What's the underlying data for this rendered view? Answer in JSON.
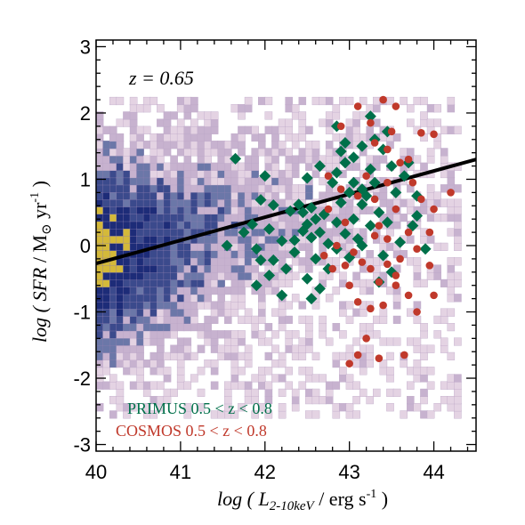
{
  "chart_data": {
    "type": "scatter",
    "annotation": "z = 0.65",
    "xlabel_parts": {
      "prefix": "log ( ",
      "var": "L",
      "sub": "2-10keV",
      "suffix": " / erg s",
      "sup": "-1",
      "close": " )"
    },
    "ylabel_parts": {
      "prefix": "log ( ",
      "var": "SFR",
      "mid": " / M",
      "sun": "⊙",
      "yr": " yr",
      "sup": "-1",
      "close": " )"
    },
    "xlim": [
      40,
      44.5
    ],
    "ylim": [
      -3.1,
      3.1
    ],
    "xticks": [
      "40",
      "41",
      "42",
      "43",
      "44"
    ],
    "yticks": [
      "-3",
      "-2",
      "-1",
      "0",
      "1",
      "2",
      "3"
    ],
    "grid": false,
    "legend_position": "bottom-left",
    "fit_line": {
      "x": [
        40.0,
        44.5
      ],
      "y": [
        -0.27,
        1.3
      ],
      "color": "#000000"
    },
    "density_field": {
      "description_colors": [
        "#e4d3e3",
        "#c7b2cf",
        "#6b77a8",
        "#3b4a8c",
        "#1d2c78",
        "#d4b93a"
      ],
      "extent_x": [
        40.0,
        44.3
      ],
      "extent_y": [
        -2.6,
        2.2
      ]
    },
    "series": [
      {
        "name": "PRIMUS 0.5 < z < 0.8",
        "color": "#00704a",
        "marker": "diamond",
        "points": [
          [
            41.65,
            1.31
          ],
          [
            42.0,
            1.05
          ],
          [
            41.95,
            0.69
          ],
          [
            42.1,
            0.61
          ],
          [
            42.3,
            0.52
          ],
          [
            41.75,
            0.2
          ],
          [
            41.55,
            0.0
          ],
          [
            41.9,
            -0.05
          ],
          [
            41.95,
            -0.22
          ],
          [
            42.1,
            -0.22
          ],
          [
            42.35,
            -0.1
          ],
          [
            42.2,
            0.07
          ],
          [
            42.05,
            0.25
          ],
          [
            41.85,
            0.32
          ],
          [
            42.25,
            -0.35
          ],
          [
            42.05,
            -0.45
          ],
          [
            41.9,
            -0.6
          ],
          [
            42.2,
            -0.75
          ],
          [
            42.45,
            0.5
          ],
          [
            42.55,
            0.57
          ],
          [
            42.6,
            0.4
          ],
          [
            42.7,
            0.47
          ],
          [
            42.5,
            0.32
          ],
          [
            42.65,
            0.2
          ],
          [
            42.55,
            0.12
          ],
          [
            42.75,
            0.03
          ],
          [
            42.45,
            0.22
          ],
          [
            42.35,
            0.08
          ],
          [
            42.6,
            -0.2
          ],
          [
            42.75,
            -0.35
          ],
          [
            42.5,
            -0.5
          ],
          [
            42.65,
            -0.65
          ],
          [
            42.55,
            -0.8
          ],
          [
            42.4,
            0.62
          ],
          [
            42.65,
            1.2
          ],
          [
            42.5,
            1.02
          ],
          [
            42.8,
            0.95
          ],
          [
            42.85,
            1.1
          ],
          [
            42.95,
            1.25
          ],
          [
            42.9,
            1.42
          ],
          [
            42.95,
            1.55
          ],
          [
            43.05,
            1.33
          ],
          [
            42.85,
            1.8
          ],
          [
            43.0,
            0.8
          ],
          [
            42.9,
            0.65
          ],
          [
            43.15,
            0.62
          ],
          [
            43.05,
            0.4
          ],
          [
            42.85,
            0.35
          ],
          [
            42.95,
            0.18
          ],
          [
            43.1,
            0.1
          ],
          [
            42.85,
            -0.05
          ],
          [
            43.0,
            -0.18
          ],
          [
            43.15,
            0.0
          ],
          [
            43.25,
            0.3
          ],
          [
            43.35,
            0.5
          ],
          [
            43.2,
            0.75
          ],
          [
            43.3,
            0.95
          ],
          [
            43.25,
            1.15
          ],
          [
            43.15,
            1.5
          ],
          [
            43.3,
            1.6
          ],
          [
            43.25,
            1.95
          ],
          [
            43.45,
            1.72
          ],
          [
            43.4,
            1.45
          ],
          [
            43.5,
            1.2
          ],
          [
            43.55,
            0.8
          ],
          [
            43.45,
            0.35
          ],
          [
            43.6,
            0.05
          ],
          [
            43.4,
            -0.15
          ],
          [
            43.5,
            -0.4
          ],
          [
            43.35,
            -0.55
          ],
          [
            43.65,
            1.05
          ],
          [
            43.7,
            1.25
          ],
          [
            43.8,
            0.45
          ],
          [
            43.75,
            0.3
          ],
          [
            43.9,
            -0.05
          ],
          [
            43.8,
            0.75
          ],
          [
            43.05,
            0.95
          ],
          [
            43.15,
            0.85
          ]
        ]
      },
      {
        "name": "COSMOS 0.5 < z < 0.8",
        "color": "#c0392b",
        "marker": "circle",
        "points": [
          [
            42.9,
            1.8
          ],
          [
            43.1,
            2.1
          ],
          [
            43.25,
            1.85
          ],
          [
            43.4,
            2.2
          ],
          [
            43.55,
            2.1
          ],
          [
            43.5,
            1.72
          ],
          [
            43.85,
            1.7
          ],
          [
            44.0,
            1.68
          ],
          [
            43.3,
            1.55
          ],
          [
            43.45,
            1.45
          ],
          [
            43.7,
            1.3
          ],
          [
            43.6,
            1.25
          ],
          [
            42.75,
            1.05
          ],
          [
            42.9,
            0.85
          ],
          [
            43.1,
            0.75
          ],
          [
            43.2,
            1.05
          ],
          [
            43.3,
            0.7
          ],
          [
            43.45,
            0.95
          ],
          [
            43.55,
            0.55
          ],
          [
            43.75,
            0.95
          ],
          [
            43.85,
            0.7
          ],
          [
            44.0,
            0.55
          ],
          [
            43.95,
            0.2
          ],
          [
            44.2,
            0.8
          ],
          [
            42.95,
            0.35
          ],
          [
            42.85,
            0.0
          ],
          [
            42.7,
            -0.15
          ],
          [
            42.8,
            -0.35
          ],
          [
            42.95,
            -0.3
          ],
          [
            43.05,
            -0.1
          ],
          [
            43.15,
            -0.25
          ],
          [
            43.25,
            -0.35
          ],
          [
            43.35,
            -0.55
          ],
          [
            43.45,
            -0.28
          ],
          [
            43.55,
            -0.45
          ],
          [
            43.6,
            -0.2
          ],
          [
            43.7,
            0.2
          ],
          [
            43.8,
            -0.05
          ],
          [
            43.0,
            -0.6
          ],
          [
            43.1,
            -0.85
          ],
          [
            43.25,
            -0.95
          ],
          [
            43.4,
            -0.9
          ],
          [
            43.55,
            -0.6
          ],
          [
            43.7,
            -0.75
          ],
          [
            43.8,
            -1.0
          ],
          [
            44.0,
            -0.75
          ],
          [
            43.95,
            -0.3
          ],
          [
            43.2,
            -1.4
          ],
          [
            43.0,
            -1.78
          ],
          [
            43.1,
            -1.65
          ],
          [
            43.35,
            -1.7
          ],
          [
            43.65,
            -1.65
          ],
          [
            43.3,
            0.15
          ],
          [
            43.45,
            0.1
          ],
          [
            42.75,
            0.55
          ],
          [
            43.35,
            0.3
          ]
        ]
      }
    ]
  }
}
